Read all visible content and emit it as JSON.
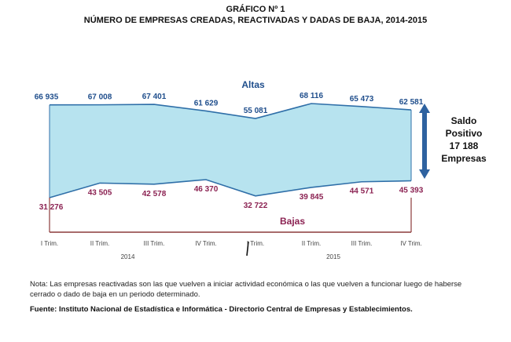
{
  "chart_data": {
    "type": "area",
    "title": "GRÁFICO Nº 1",
    "subtitle": "NÚMERO DE EMPRESAS CREADAS, REACTIVADAS Y DADAS DE BAJA, 2014-2015",
    "categories": [
      "I Trim.",
      "II Trim.",
      "III Trim.",
      "IV Trim.",
      "I Trim.",
      "II Trim.",
      "III Trim.",
      "IV Trim."
    ],
    "years": [
      {
        "label": "2014",
        "from": 0,
        "to": 3
      },
      {
        "label": "2015",
        "from": 4,
        "to": 7
      }
    ],
    "series": [
      {
        "name": "Altas",
        "values": [
          66935,
          67008,
          67401,
          61629,
          55081,
          68116,
          65473,
          62581
        ],
        "labels": [
          "66 935",
          "67 008",
          "67 401",
          "61 629",
          "55 081",
          "68 116",
          "65 473",
          "62 581"
        ]
      },
      {
        "name": "Bajas",
        "values": [
          31276,
          43505,
          42578,
          46370,
          32722,
          39845,
          44571,
          45393
        ],
        "labels": [
          "31 276",
          "43 505",
          "42 578",
          "46 370",
          "32 722",
          "39 845",
          "44 571",
          "45 393"
        ]
      }
    ],
    "annotation": {
      "lines": [
        "Saldo",
        "Positivo",
        "17 188",
        "Empresas"
      ]
    },
    "colors": {
      "altas_label": "#1f4e8c",
      "bajas_label": "#8b2252",
      "fill": "#b7e3ef",
      "line": "#2f6fa8",
      "axis": "#8b3a3a",
      "arrow": "#2e62a0"
    }
  },
  "note": "Nota: Las empresas reactivadas son las que vuelven a iniciar actividad económica o las que vuelven a funcionar luego de haberse cerrado o dado de baja en un periodo determinado.",
  "source": "Fuente: Instituto Nacional de Estadística e Informática - Directorio Central de Empresas y Establecimientos."
}
